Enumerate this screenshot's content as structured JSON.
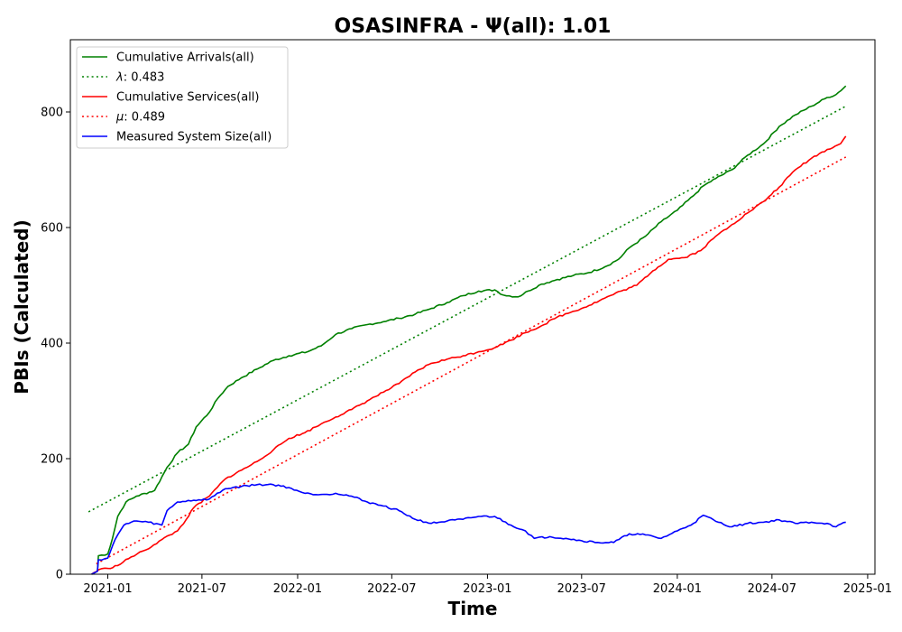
{
  "chart_data": {
    "type": "line",
    "title": "OSASINFRA -  Ψ(all): 1.01",
    "xlabel": "Time",
    "ylabel": "PBIs (Calculated)",
    "x_ticks": [
      "2021-01",
      "2021-07",
      "2022-01",
      "2022-07",
      "2023-01",
      "2023-07",
      "2024-01",
      "2024-07",
      "2025-01"
    ],
    "y_ticks": [
      0,
      200,
      400,
      600,
      800
    ],
    "xlim": [
      "2020-10-21",
      "2025-01-15"
    ],
    "ylim": [
      0,
      925
    ],
    "grid": false,
    "legend_position": "top-left",
    "legend": [
      {
        "label": "Cumulative Arrivals(all)",
        "color": "#008000",
        "style": "solid"
      },
      {
        "label_prefix": "λ",
        "label_value": ": 0.483",
        "color": "#008000",
        "style": "dotted"
      },
      {
        "label": "Cumulative Services(all)",
        "color": "#ff0000",
        "style": "solid"
      },
      {
        "label_prefix": "μ",
        "label_value": ": 0.489",
        "color": "#ff0000",
        "style": "dotted"
      },
      {
        "label": "Measured System Size(all)",
        "color": "#0000ff",
        "style": "solid"
      }
    ],
    "series": [
      {
        "name": "Cumulative Arrivals(all)",
        "color": "#008000",
        "style": "solid",
        "points": [
          [
            "2020-12-01",
            0
          ],
          [
            "2020-12-12",
            5
          ],
          [
            "2020-12-14",
            32
          ],
          [
            "2021-01-01",
            35
          ],
          [
            "2021-01-10",
            62
          ],
          [
            "2021-01-20",
            100
          ],
          [
            "2021-02-05",
            125
          ],
          [
            "2021-02-25",
            135
          ],
          [
            "2021-04-01",
            145
          ],
          [
            "2021-04-25",
            185
          ],
          [
            "2021-05-15",
            210
          ],
          [
            "2021-06-05",
            225
          ],
          [
            "2021-06-20",
            255
          ],
          [
            "2021-07-15",
            280
          ],
          [
            "2021-08-01",
            305
          ],
          [
            "2021-08-20",
            325
          ],
          [
            "2021-09-15",
            340
          ],
          [
            "2021-10-15",
            355
          ],
          [
            "2021-11-15",
            370
          ],
          [
            "2021-12-15",
            378
          ],
          [
            "2022-01-20",
            385
          ],
          [
            "2022-02-15",
            395
          ],
          [
            "2022-03-15",
            415
          ],
          [
            "2022-04-15",
            425
          ],
          [
            "2022-05-15",
            432
          ],
          [
            "2022-06-15",
            437
          ],
          [
            "2022-07-15",
            443
          ],
          [
            "2022-08-15",
            450
          ],
          [
            "2022-09-15",
            460
          ],
          [
            "2022-10-15",
            470
          ],
          [
            "2022-11-15",
            482
          ],
          [
            "2022-12-15",
            490
          ],
          [
            "2023-01-15",
            492
          ],
          [
            "2023-02-01",
            483
          ],
          [
            "2023-03-01",
            480
          ],
          [
            "2023-03-20",
            490
          ],
          [
            "2023-04-15",
            502
          ],
          [
            "2023-05-15",
            510
          ],
          [
            "2023-06-15",
            517
          ],
          [
            "2023-07-15",
            522
          ],
          [
            "2023-08-15",
            532
          ],
          [
            "2023-09-10",
            545
          ],
          [
            "2023-10-01",
            565
          ],
          [
            "2023-11-01",
            585
          ],
          [
            "2023-12-01",
            610
          ],
          [
            "2024-01-01",
            630
          ],
          [
            "2024-02-01",
            655
          ],
          [
            "2024-02-20",
            672
          ],
          [
            "2024-03-15",
            685
          ],
          [
            "2024-04-15",
            700
          ],
          [
            "2024-05-15",
            725
          ],
          [
            "2024-06-15",
            745
          ],
          [
            "2024-07-15",
            775
          ],
          [
            "2024-08-15",
            795
          ],
          [
            "2024-09-15",
            810
          ],
          [
            "2024-10-15",
            825
          ],
          [
            "2024-11-01",
            830
          ],
          [
            "2024-11-20",
            845
          ]
        ]
      },
      {
        "name": "λ: 0.483",
        "color": "#008000",
        "style": "dotted",
        "points": [
          [
            "2020-11-25",
            108
          ],
          [
            "2024-11-20",
            810
          ]
        ]
      },
      {
        "name": "Cumulative Services(all)",
        "color": "#ff0000",
        "style": "solid",
        "points": [
          [
            "2020-12-01",
            0
          ],
          [
            "2020-12-15",
            8
          ],
          [
            "2021-01-01",
            10
          ],
          [
            "2021-01-20",
            15
          ],
          [
            "2021-02-15",
            30
          ],
          [
            "2021-03-15",
            42
          ],
          [
            "2021-04-15",
            60
          ],
          [
            "2021-05-15",
            75
          ],
          [
            "2021-06-01",
            95
          ],
          [
            "2021-06-15",
            115
          ],
          [
            "2021-07-15",
            135
          ],
          [
            "2021-08-15",
            165
          ],
          [
            "2021-09-15",
            180
          ],
          [
            "2021-10-15",
            195
          ],
          [
            "2021-11-15",
            215
          ],
          [
            "2021-12-15",
            235
          ],
          [
            "2022-01-15",
            245
          ],
          [
            "2022-02-15",
            260
          ],
          [
            "2022-03-15",
            272
          ],
          [
            "2022-04-15",
            285
          ],
          [
            "2022-05-15",
            300
          ],
          [
            "2022-06-15",
            315
          ],
          [
            "2022-07-15",
            330
          ],
          [
            "2022-08-15",
            350
          ],
          [
            "2022-09-15",
            365
          ],
          [
            "2022-10-15",
            372
          ],
          [
            "2022-11-15",
            378
          ],
          [
            "2022-12-15",
            385
          ],
          [
            "2023-01-15",
            392
          ],
          [
            "2023-02-15",
            405
          ],
          [
            "2023-03-15",
            418
          ],
          [
            "2023-04-15",
            430
          ],
          [
            "2023-05-15",
            445
          ],
          [
            "2023-06-15",
            455
          ],
          [
            "2023-07-15",
            465
          ],
          [
            "2023-08-15",
            478
          ],
          [
            "2023-09-15",
            490
          ],
          [
            "2023-10-15",
            500
          ],
          [
            "2023-11-15",
            525
          ],
          [
            "2023-12-15",
            545
          ],
          [
            "2024-01-15",
            548
          ],
          [
            "2024-02-15",
            560
          ],
          [
            "2024-03-15",
            585
          ],
          [
            "2024-04-15",
            605
          ],
          [
            "2024-05-15",
            625
          ],
          [
            "2024-06-15",
            645
          ],
          [
            "2024-07-15",
            670
          ],
          [
            "2024-08-15",
            700
          ],
          [
            "2024-09-15",
            720
          ],
          [
            "2024-10-15",
            735
          ],
          [
            "2024-11-10",
            745
          ],
          [
            "2024-11-20",
            758
          ]
        ]
      },
      {
        "name": "μ: 0.489",
        "color": "#ff0000",
        "style": "dotted",
        "points": [
          [
            "2020-12-10",
            18
          ],
          [
            "2024-11-20",
            722
          ]
        ]
      },
      {
        "name": "Measured System Size(all)",
        "color": "#0000ff",
        "style": "solid",
        "points": [
          [
            "2020-12-01",
            0
          ],
          [
            "2020-12-12",
            5
          ],
          [
            "2020-12-14",
            25
          ],
          [
            "2021-01-01",
            28
          ],
          [
            "2021-01-15",
            60
          ],
          [
            "2021-02-01",
            85
          ],
          [
            "2021-02-20",
            92
          ],
          [
            "2021-03-20",
            90
          ],
          [
            "2021-04-15",
            85
          ],
          [
            "2021-04-25",
            110
          ],
          [
            "2021-05-15",
            125
          ],
          [
            "2021-06-15",
            128
          ],
          [
            "2021-07-15",
            130
          ],
          [
            "2021-08-15",
            148
          ],
          [
            "2021-09-15",
            152
          ],
          [
            "2021-10-15",
            155
          ],
          [
            "2021-11-15",
            155
          ],
          [
            "2021-12-15",
            150
          ],
          [
            "2022-01-15",
            140
          ],
          [
            "2022-02-15",
            138
          ],
          [
            "2022-03-15",
            140
          ],
          [
            "2022-04-15",
            135
          ],
          [
            "2022-05-15",
            125
          ],
          [
            "2022-06-15",
            118
          ],
          [
            "2022-07-15",
            110
          ],
          [
            "2022-08-15",
            95
          ],
          [
            "2022-09-15",
            88
          ],
          [
            "2022-10-15",
            92
          ],
          [
            "2022-11-15",
            95
          ],
          [
            "2022-12-15",
            100
          ],
          [
            "2023-01-15",
            100
          ],
          [
            "2023-02-15",
            85
          ],
          [
            "2023-03-15",
            75
          ],
          [
            "2023-04-01",
            62
          ],
          [
            "2023-05-01",
            65
          ],
          [
            "2023-06-01",
            62
          ],
          [
            "2023-07-01",
            58
          ],
          [
            "2023-08-01",
            55
          ],
          [
            "2023-09-01",
            55
          ],
          [
            "2023-10-01",
            70
          ],
          [
            "2023-11-01",
            68
          ],
          [
            "2023-12-01",
            62
          ],
          [
            "2024-01-01",
            75
          ],
          [
            "2024-02-01",
            88
          ],
          [
            "2024-02-20",
            102
          ],
          [
            "2024-03-20",
            90
          ],
          [
            "2024-04-15",
            82
          ],
          [
            "2024-05-15",
            88
          ],
          [
            "2024-06-15",
            90
          ],
          [
            "2024-07-15",
            94
          ],
          [
            "2024-08-15",
            88
          ],
          [
            "2024-09-15",
            90
          ],
          [
            "2024-10-15",
            88
          ],
          [
            "2024-11-01",
            82
          ],
          [
            "2024-11-20",
            90
          ]
        ]
      }
    ]
  }
}
